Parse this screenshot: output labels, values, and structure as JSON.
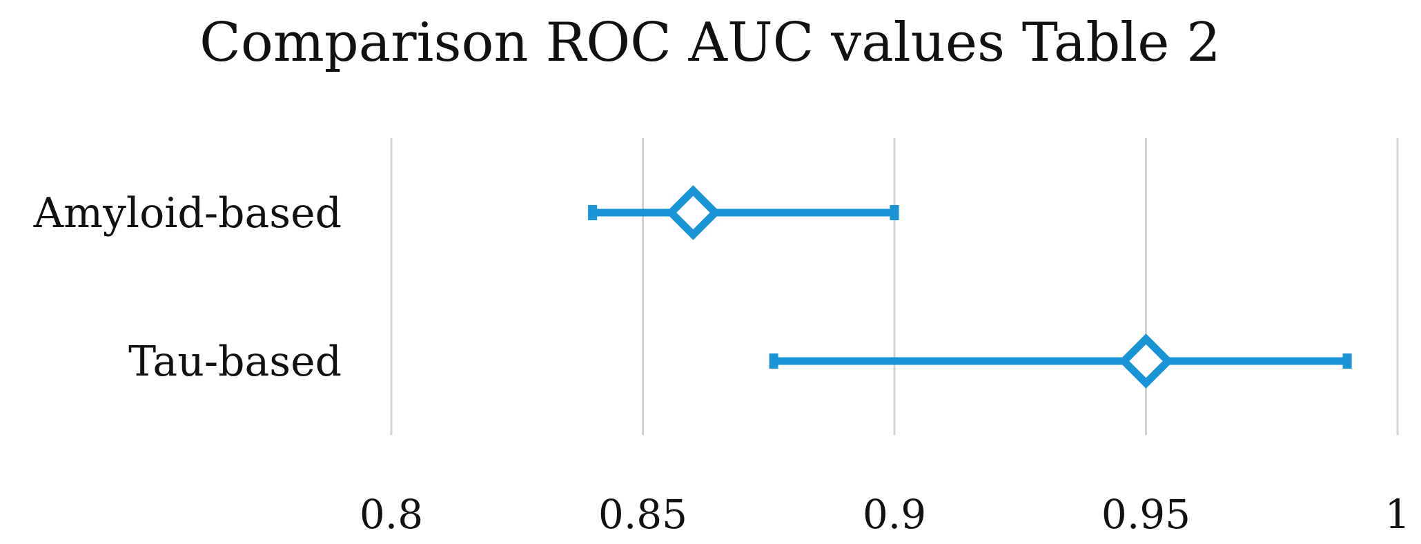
{
  "chart_data": {
    "type": "scatter",
    "title": "Comparison ROC AUC values Table 2",
    "xlabel": "",
    "ylabel": "",
    "xlim": [
      0.8,
      1.0
    ],
    "x_ticks": [
      "0.8",
      "0.85",
      "0.9",
      "0.95",
      "1"
    ],
    "x_tick_values": [
      0.8,
      0.85,
      0.9,
      0.95,
      1.0
    ],
    "grid": "vertical",
    "legend": "none",
    "marker": "diamond",
    "color": "#1a94d6",
    "categories": [
      "Amyloid-based",
      "Tau-based"
    ],
    "points": [
      {
        "category": "Amyloid-based",
        "value": 0.86,
        "ci_low": 0.84,
        "ci_high": 0.9
      },
      {
        "category": "Tau-based",
        "value": 0.95,
        "ci_low": 0.876,
        "ci_high": 0.99
      }
    ]
  }
}
